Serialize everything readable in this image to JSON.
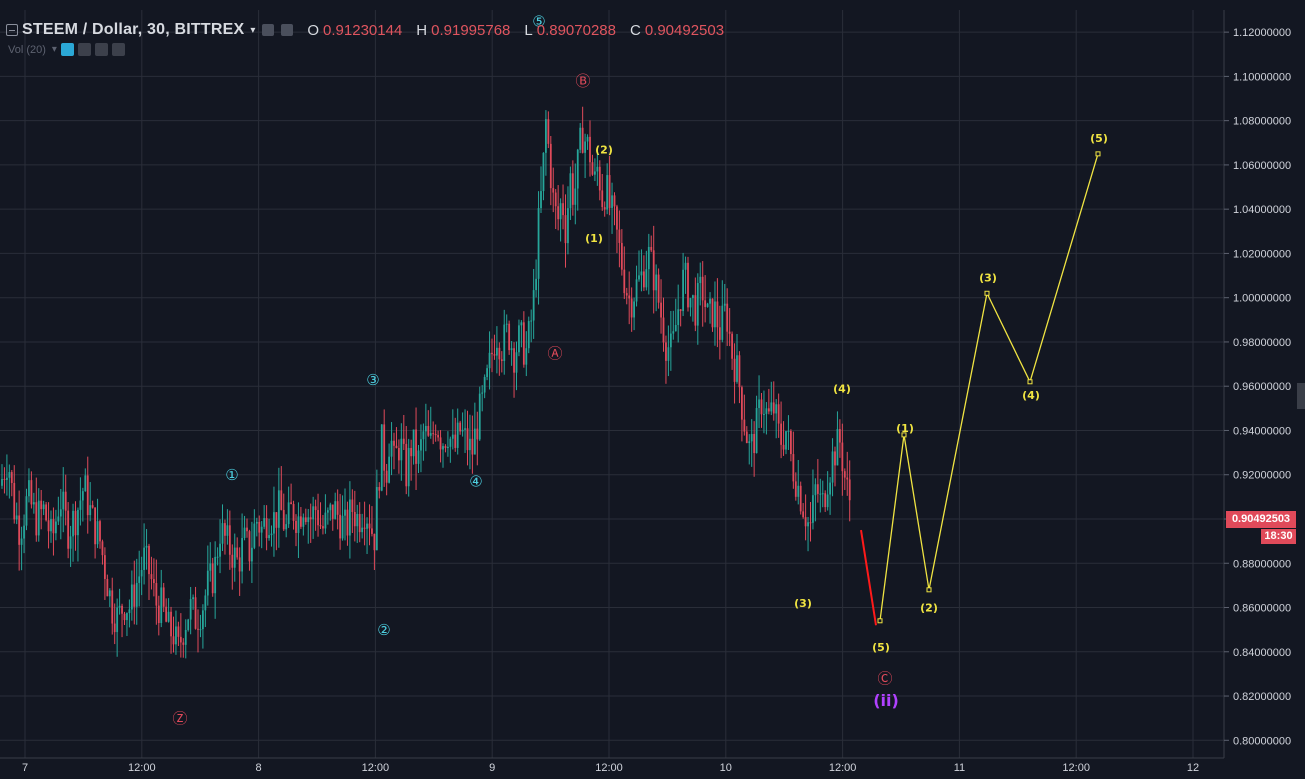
{
  "header": {
    "symbol": "STEEM / Dollar, 30, BITTREX",
    "open_label": "O",
    "open": "0.91230144",
    "high_label": "H",
    "high": "0.91995768",
    "low_label": "L",
    "low": "0.89070288",
    "close_label": "C",
    "close": "0.90492503",
    "volume_indicator": "Vol (20)"
  },
  "price_tag": "0.90492503",
  "time_tag": "18:30",
  "colors": {
    "background": "#131722",
    "grid": "#2a2e39",
    "up": "#26a69a",
    "down": "#e04a5a",
    "wave_cyan": "#4dd0e1",
    "wave_red": "#e04a5a",
    "wave_yellow": "#f0e442",
    "wave_purple": "#b041ff"
  },
  "chart_data": {
    "type": "candlestick",
    "ylim": [
      0.792,
      1.13
    ],
    "y_ticks": [
      "1.12000000",
      "1.10000000",
      "1.08000000",
      "1.06000000",
      "1.04000000",
      "1.02000000",
      "1.00000000",
      "0.98000000",
      "0.96000000",
      "0.94000000",
      "0.92000000",
      "0.90000000",
      "0.88000000",
      "0.86000000",
      "0.84000000",
      "0.82000000",
      "0.80000000"
    ],
    "x_ticks": [
      "7",
      "12:00",
      "8",
      "12:00",
      "9",
      "12:00",
      "10",
      "12:00",
      "11",
      "12:00",
      "12"
    ],
    "price_path": [
      [
        0,
        0.915
      ],
      [
        8,
        0.928
      ],
      [
        14,
        0.905
      ],
      [
        20,
        0.895
      ],
      [
        28,
        0.91
      ],
      [
        36,
        0.9
      ],
      [
        44,
        0.904
      ],
      [
        52,
        0.89
      ],
      [
        60,
        0.91
      ],
      [
        68,
        0.895
      ],
      [
        76,
        0.902
      ],
      [
        84,
        0.915
      ],
      [
        92,
        0.9
      ],
      [
        100,
        0.89
      ],
      [
        106,
        0.875
      ],
      [
        112,
        0.86
      ],
      [
        118,
        0.855
      ],
      [
        124,
        0.862
      ],
      [
        130,
        0.86
      ],
      [
        136,
        0.87
      ],
      [
        144,
        0.882
      ],
      [
        150,
        0.875
      ],
      [
        156,
        0.862
      ],
      [
        162,
        0.86
      ],
      [
        168,
        0.85
      ],
      [
        174,
        0.848
      ],
      [
        178,
        0.84
      ],
      [
        184,
        0.852
      ],
      [
        190,
        0.86
      ],
      [
        196,
        0.855
      ],
      [
        202,
        0.86
      ],
      [
        208,
        0.87
      ],
      [
        214,
        0.875
      ],
      [
        220,
        0.895
      ],
      [
        226,
        0.89
      ],
      [
        232,
        0.885
      ],
      [
        238,
        0.88
      ],
      [
        244,
        0.89
      ],
      [
        250,
        0.885
      ],
      [
        256,
        0.9
      ],
      [
        262,
        0.895
      ],
      [
        268,
        0.902
      ],
      [
        274,
        0.9
      ],
      [
        280,
        0.905
      ],
      [
        286,
        0.895
      ],
      [
        292,
        0.905
      ],
      [
        298,
        0.9
      ],
      [
        304,
        0.908
      ],
      [
        310,
        0.9
      ],
      [
        316,
        0.905
      ],
      [
        322,
        0.895
      ],
      [
        328,
        0.9
      ],
      [
        334,
        0.905
      ],
      [
        340,
        0.9
      ],
      [
        346,
        0.895
      ],
      [
        352,
        0.905
      ],
      [
        358,
        0.9
      ],
      [
        364,
        0.905
      ],
      [
        370,
        0.9
      ],
      [
        374,
        0.89
      ],
      [
        378,
        0.915
      ],
      [
        382,
        0.935
      ],
      [
        386,
        0.92
      ],
      [
        390,
        0.94
      ],
      [
        394,
        0.925
      ],
      [
        400,
        0.935
      ],
      [
        406,
        0.92
      ],
      [
        412,
        0.935
      ],
      [
        418,
        0.925
      ],
      [
        424,
        0.94
      ],
      [
        430,
        0.932
      ],
      [
        436,
        0.945
      ],
      [
        442,
        0.935
      ],
      [
        448,
        0.94
      ],
      [
        454,
        0.93
      ],
      [
        460,
        0.94
      ],
      [
        466,
        0.935
      ],
      [
        472,
        0.93
      ],
      [
        478,
        0.945
      ],
      [
        484,
        0.955
      ],
      [
        490,
        0.97
      ],
      [
        496,
        0.985
      ],
      [
        502,
        0.978
      ],
      [
        508,
        0.985
      ],
      [
        514,
        0.975
      ],
      [
        520,
        0.982
      ],
      [
        526,
        0.975
      ],
      [
        530,
        0.985
      ],
      [
        534,
        1.0
      ],
      [
        538,
        1.03
      ],
      [
        542,
        1.05
      ],
      [
        546,
        1.08
      ],
      [
        550,
        1.06
      ],
      [
        554,
        1.04
      ],
      [
        558,
        1.035
      ],
      [
        562,
        1.045
      ],
      [
        566,
        1.03
      ],
      [
        570,
        1.055
      ],
      [
        574,
        1.045
      ],
      [
        578,
        1.06
      ],
      [
        582,
        1.075
      ],
      [
        586,
        1.07
      ],
      [
        590,
        1.065
      ],
      [
        594,
        1.05
      ],
      [
        598,
        1.06
      ],
      [
        602,
        1.045
      ],
      [
        606,
        1.05
      ],
      [
        610,
        1.04
      ],
      [
        614,
        1.035
      ],
      [
        618,
        1.025
      ],
      [
        622,
        1.015
      ],
      [
        626,
        1.005
      ],
      [
        630,
        0.998
      ],
      [
        636,
        1.005
      ],
      [
        642,
        1.01
      ],
      [
        648,
        1.02
      ],
      [
        654,
        1.01
      ],
      [
        660,
        0.995
      ],
      [
        666,
        0.98
      ],
      [
        672,
        0.975
      ],
      [
        678,
        0.995
      ],
      [
        684,
        1.01
      ],
      [
        690,
        1.0
      ],
      [
        696,
        0.995
      ],
      [
        702,
        1.005
      ],
      [
        708,
        0.99
      ],
      [
        714,
        0.995
      ],
      [
        720,
        0.985
      ],
      [
        726,
        0.995
      ],
      [
        732,
        0.975
      ],
      [
        738,
        0.965
      ],
      [
        744,
        0.945
      ],
      [
        750,
        0.93
      ],
      [
        756,
        0.94
      ],
      [
        762,
        0.955
      ],
      [
        768,
        0.945
      ],
      [
        774,
        0.95
      ],
      [
        780,
        0.935
      ],
      [
        786,
        0.94
      ],
      [
        792,
        0.925
      ],
      [
        798,
        0.915
      ],
      [
        804,
        0.905
      ],
      [
        810,
        0.895
      ],
      [
        816,
        0.915
      ],
      [
        822,
        0.905
      ],
      [
        828,
        0.92
      ],
      [
        834,
        0.93
      ],
      [
        840,
        0.935
      ],
      [
        846,
        0.915
      ],
      [
        852,
        0.905
      ]
    ],
    "projection_red": [
      [
        861,
        0.895
      ],
      [
        876,
        0.852
      ]
    ],
    "projection_yellow": [
      [
        880,
        0.854
      ],
      [
        904,
        0.938
      ],
      [
        929,
        0.868
      ],
      [
        987,
        1.002
      ],
      [
        1030,
        0.962
      ],
      [
        1098,
        1.065
      ]
    ],
    "wave_labels": [
      {
        "text": "①",
        "x": 232,
        "y": 0.92,
        "color": "cyan",
        "circle": true
      },
      {
        "text": "②",
        "x": 384,
        "y": 0.85,
        "color": "cyan",
        "circle": true
      },
      {
        "text": "③",
        "x": 373,
        "y": 0.963,
        "color": "cyan",
        "circle": true
      },
      {
        "text": "④",
        "x": 476,
        "y": 0.917,
        "color": "cyan",
        "circle": true
      },
      {
        "text": "⑤",
        "x": 539,
        "y": 1.125,
        "color": "cyan",
        "circle": true
      },
      {
        "text": "Ⓩ",
        "x": 180,
        "y": 0.81,
        "color": "red",
        "circle": true
      },
      {
        "text": "Ⓐ",
        "x": 555,
        "y": 0.975,
        "color": "red",
        "circle": true
      },
      {
        "text": "Ⓑ",
        "x": 583,
        "y": 1.098,
        "color": "red",
        "circle": true
      },
      {
        "text": "Ⓒ",
        "x": 885,
        "y": 0.828,
        "color": "red",
        "circle": true
      },
      {
        "text": "(1)",
        "x": 594,
        "y": 1.027,
        "color": "yellow"
      },
      {
        "text": "(2)",
        "x": 604,
        "y": 1.067,
        "color": "yellow"
      },
      {
        "text": "(3)",
        "x": 803,
        "y": 0.862,
        "color": "yellow"
      },
      {
        "text": "(4)",
        "x": 842,
        "y": 0.959,
        "color": "yellow"
      },
      {
        "text": "(5)",
        "x": 881,
        "y": 0.842,
        "color": "yellow"
      },
      {
        "text": "(1)",
        "x": 905,
        "y": 0.941,
        "color": "yellow"
      },
      {
        "text": "(2)",
        "x": 929,
        "y": 0.86,
        "color": "yellow"
      },
      {
        "text": "(3)",
        "x": 988,
        "y": 1.009,
        "color": "yellow"
      },
      {
        "text": "(4)",
        "x": 1031,
        "y": 0.956,
        "color": "yellow"
      },
      {
        "text": "(5)",
        "x": 1099,
        "y": 1.072,
        "color": "yellow"
      },
      {
        "text": "(ii)",
        "x": 886,
        "y": 0.818,
        "color": "purple"
      }
    ],
    "xlabel": "",
    "ylabel": ""
  }
}
